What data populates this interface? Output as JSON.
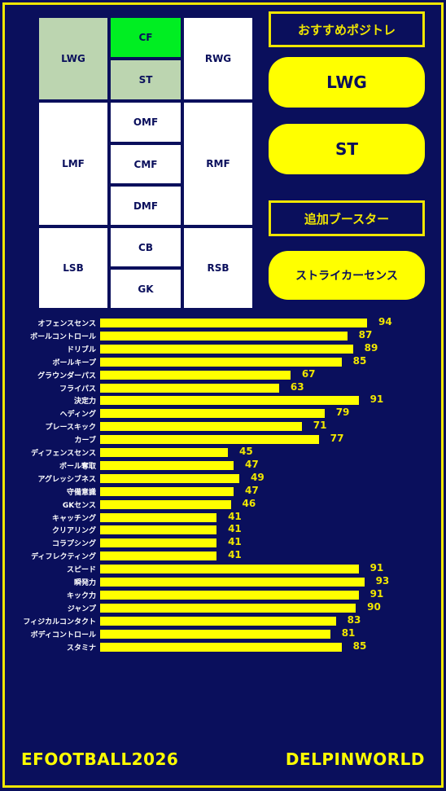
{
  "positions": {
    "LWG": "LWG",
    "CF": "CF",
    "ST": "ST",
    "RWG": "RWG",
    "LMF": "LMF",
    "OMF": "OMF",
    "CMF": "CMF",
    "DMF": "DMF",
    "RMF": "RMF",
    "LSB": "LSB",
    "CB": "CB",
    "GK": "GK",
    "RSB": "RSB"
  },
  "recommended": {
    "heading": "おすすめポジトレ",
    "items": [
      "LWG",
      "ST"
    ]
  },
  "booster": {
    "heading": "追加ブースター",
    "name": "ストライカーセンス"
  },
  "colors": {
    "background": "#0a0f5c",
    "accent": "#ffff00",
    "highlight": "#00ee22",
    "secondary": "#bcd5b0"
  },
  "chart_data": {
    "type": "bar",
    "orientation": "horizontal",
    "categories": [
      "オフェンスセンス",
      "ボールコントロール",
      "ドリブル",
      "ボールキープ",
      "グラウンダーパス",
      "フライパス",
      "決定力",
      "ヘディング",
      "プレースキック",
      "カーブ",
      "ディフェンスセンス",
      "ボール奪取",
      "アグレッシブネス",
      "守備意識",
      "GKセンス",
      "キャッチング",
      "クリアリング",
      "コラプシング",
      "ディフレクティング",
      "スピード",
      "瞬発力",
      "キック力",
      "ジャンプ",
      "フィジカルコンタクト",
      "ボディコントロール",
      "スタミナ"
    ],
    "values": [
      94,
      87,
      89,
      85,
      67,
      63,
      91,
      79,
      71,
      77,
      45,
      47,
      49,
      47,
      46,
      41,
      41,
      41,
      41,
      91,
      93,
      91,
      90,
      83,
      81,
      85
    ],
    "xlim": [
      0,
      100
    ]
  },
  "footer": {
    "left": "EFOOTBALL2026",
    "right": "DELPINWORLD"
  }
}
